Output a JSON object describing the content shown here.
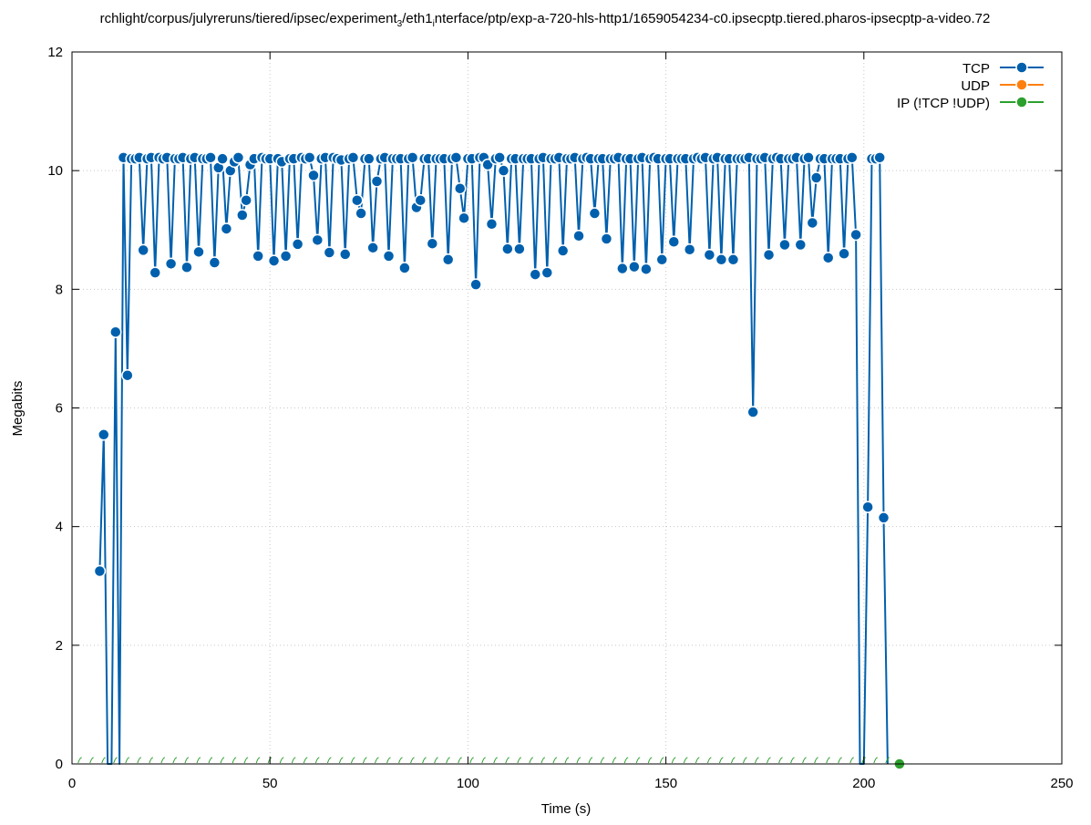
{
  "colors": {
    "tcp": "#0060ad",
    "udp": "#ff7f0e",
    "ip": "#2ca02c",
    "grid": "#c8c8c8",
    "axis": "#000000"
  },
  "chart_data": {
    "type": "line",
    "title_prefix": "rchlight/corpus/julyreruns/tiered/ipsec/experiment",
    "title_sub": "3",
    "title_mid": "/eth1",
    "title_sub2": "i",
    "title_suffix": "nterface/ptp/exp-a-720-hls-http1/1659054234-c0.ipsecptp.tiered.pharos-ipsecptp-a-video.72",
    "xlabel": "Time (s)",
    "ylabel": "Megabits",
    "xlim": [
      0,
      250
    ],
    "ylim": [
      0,
      12
    ],
    "xticks": [
      "0",
      "50",
      "100",
      "150",
      "200",
      "250"
    ],
    "yticks": [
      "0",
      "2",
      "4",
      "6",
      "8",
      "10",
      "12"
    ],
    "grid": true,
    "legend_position": "top-right",
    "series": [
      {
        "name": "TCP",
        "x": [
          7,
          8,
          9,
          10,
          11,
          12,
          13,
          14,
          15,
          16,
          17,
          18,
          19,
          20,
          21,
          22,
          23,
          24,
          25,
          26,
          27,
          28,
          29,
          30,
          31,
          32,
          33,
          34,
          35,
          36,
          37,
          38,
          39,
          40,
          41,
          42,
          43,
          44,
          45,
          46,
          47,
          48,
          49,
          50,
          51,
          52,
          53,
          54,
          55,
          56,
          57,
          58,
          59,
          60,
          61,
          62,
          63,
          64,
          65,
          66,
          67,
          68,
          69,
          70,
          71,
          72,
          73,
          74,
          75,
          76,
          77,
          78,
          79,
          80,
          81,
          82,
          83,
          84,
          85,
          86,
          87,
          88,
          89,
          90,
          91,
          92,
          93,
          94,
          95,
          96,
          97,
          98,
          99,
          100,
          101,
          102,
          103,
          104,
          105,
          106,
          107,
          108,
          109,
          110,
          111,
          112,
          113,
          114,
          115,
          116,
          117,
          118,
          119,
          120,
          121,
          122,
          123,
          124,
          125,
          126,
          127,
          128,
          129,
          130,
          131,
          132,
          133,
          134,
          135,
          136,
          137,
          138,
          139,
          140,
          141,
          142,
          143,
          144,
          145,
          146,
          147,
          148,
          149,
          150,
          151,
          152,
          153,
          154,
          155,
          156,
          157,
          158,
          159,
          160,
          161,
          162,
          163,
          164,
          165,
          166,
          167,
          168,
          169,
          170,
          171,
          172,
          173,
          174,
          175,
          176,
          177,
          178,
          179,
          180,
          181,
          182,
          183,
          184,
          185,
          186,
          187,
          188,
          189,
          190,
          191,
          192,
          193,
          194,
          195,
          196,
          197,
          198,
          199,
          200,
          201,
          202,
          203,
          204,
          205,
          206
        ],
        "values": [
          3.25,
          5.55,
          0,
          0,
          7.28,
          0,
          10.22,
          6.55,
          10.2,
          10.2,
          10.22,
          8.66,
          10.2,
          10.22,
          8.28,
          10.22,
          10.2,
          10.22,
          8.43,
          10.2,
          10.2,
          10.22,
          8.37,
          10.2,
          10.22,
          8.63,
          10.2,
          10.2,
          10.22,
          8.45,
          10.05,
          10.2,
          9.02,
          10.0,
          10.15,
          10.22,
          9.25,
          9.5,
          10.1,
          10.2,
          8.56,
          10.22,
          10.2,
          10.2,
          8.48,
          10.2,
          10.15,
          8.56,
          10.2,
          10.2,
          8.76,
          10.22,
          10.2,
          10.22,
          9.92,
          8.83,
          10.2,
          10.22,
          8.62,
          10.22,
          10.2,
          10.18,
          8.59,
          10.2,
          10.22,
          9.5,
          9.28,
          10.2,
          10.2,
          8.7,
          9.82,
          10.2,
          10.22,
          8.56,
          10.2,
          10.2,
          10.2,
          8.36,
          10.2,
          10.22,
          9.38,
          9.5,
          10.2,
          10.2,
          8.77,
          10.2,
          10.2,
          10.2,
          8.5,
          10.2,
          10.22,
          9.7,
          9.2,
          10.2,
          10.2,
          8.08,
          10.22,
          10.22,
          10.1,
          9.1,
          10.2,
          10.22,
          10.0,
          8.68,
          10.2,
          10.2,
          8.68,
          10.2,
          10.2,
          10.2,
          8.25,
          10.2,
          10.22,
          8.28,
          10.2,
          10.2,
          10.22,
          8.65,
          10.2,
          10.2,
          10.22,
          8.9,
          10.2,
          10.22,
          10.2,
          9.28,
          10.2,
          10.2,
          8.85,
          10.2,
          10.2,
          10.22,
          8.35,
          10.2,
          10.2,
          8.38,
          10.2,
          10.22,
          8.34,
          10.2,
          10.22,
          10.2,
          8.5,
          10.2,
          10.2,
          8.8,
          10.2,
          10.2,
          10.2,
          8.67,
          10.2,
          10.22,
          10.2,
          10.22,
          8.58,
          10.2,
          10.22,
          8.5,
          10.2,
          10.2,
          8.5,
          10.2,
          10.2,
          10.2,
          10.22,
          5.93,
          10.2,
          10.2,
          10.22,
          8.58,
          10.2,
          10.22,
          10.2,
          8.75,
          10.2,
          10.2,
          10.22,
          8.75,
          10.2,
          10.22,
          9.12,
          9.88,
          10.2,
          10.2,
          8.53,
          10.2,
          10.2,
          10.2,
          8.6,
          10.2,
          10.22,
          8.92,
          0,
          0,
          4.33,
          10.2,
          10.2,
          10.22,
          4.15,
          0
        ]
      },
      {
        "name": "UDP",
        "x": [],
        "values": []
      },
      {
        "name": "IP (!TCP  !UDP)",
        "x": [
          2,
          5,
          8,
          11,
          14,
          17,
          20,
          23,
          26,
          29,
          32,
          35,
          38,
          41,
          44,
          47,
          50,
          53,
          56,
          59,
          62,
          65,
          68,
          71,
          74,
          77,
          80,
          83,
          86,
          89,
          92,
          95,
          98,
          101,
          104,
          107,
          110,
          113,
          116,
          119,
          122,
          125,
          128,
          131,
          134,
          137,
          140,
          143,
          146,
          149,
          152,
          155,
          158,
          161,
          164,
          167,
          170,
          173,
          176,
          179,
          182,
          185,
          188,
          191,
          194,
          197,
          200,
          203,
          206,
          209
        ],
        "values": [
          0,
          0,
          0,
          0,
          0,
          0,
          0,
          0,
          0,
          0,
          0,
          0,
          0,
          0,
          0,
          0,
          0,
          0,
          0,
          0,
          0,
          0,
          0,
          0,
          0,
          0,
          0,
          0,
          0,
          0,
          0,
          0,
          0,
          0,
          0,
          0,
          0,
          0,
          0,
          0,
          0,
          0,
          0,
          0,
          0,
          0,
          0,
          0,
          0,
          0,
          0,
          0,
          0,
          0,
          0,
          0,
          0,
          0,
          0,
          0,
          0,
          0,
          0,
          0,
          0,
          0,
          0,
          0,
          0,
          0
        ]
      }
    ]
  }
}
